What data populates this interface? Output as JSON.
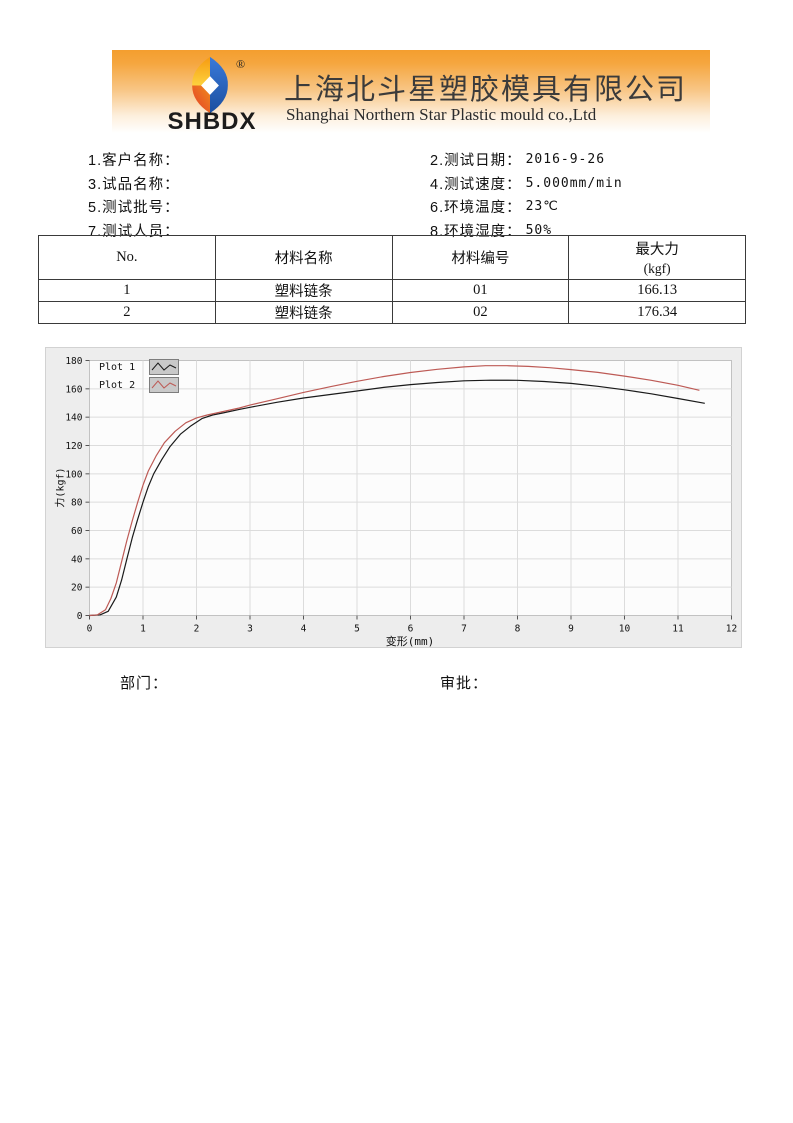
{
  "header": {
    "logo_text": "SHBDX",
    "registered_mark": "®",
    "company_name_cn": "上海北斗星塑胶模具有限公司",
    "company_name_en": "Shanghai Northern Star Plastic mould co.,Ltd",
    "banner_orange": "#f5a53c",
    "logo_colors": {
      "top": "#f6a118",
      "left_bottom": "#e8432a",
      "right": "#2f6fd0",
      "yellow": "#fdd23e"
    }
  },
  "info_fields": {
    "left": [
      {
        "label": "1.客户名称：",
        "value": ""
      },
      {
        "label": "3.试品名称：",
        "value": ""
      },
      {
        "label": "5.测试批号：",
        "value": ""
      },
      {
        "label": "7.测试人员：",
        "value": ""
      }
    ],
    "right": [
      {
        "label": "2.测试日期：",
        "value": "2016-9-26"
      },
      {
        "label": "4.测试速度：",
        "value": "5.000mm/min"
      },
      {
        "label": "6.环境温度：",
        "value": "23℃"
      },
      {
        "label": "8.环境湿度：",
        "value": "50%"
      }
    ]
  },
  "results_table": {
    "col_no": "No.",
    "col_material_name": "材料名称",
    "col_material_code": "材料编号",
    "col_max_force": "最大力",
    "col_max_force_unit": "(kgf)",
    "rows": [
      {
        "no": "1",
        "material_name": "塑料链条",
        "material_code": "01",
        "max_force": "166.13"
      },
      {
        "no": "2",
        "material_name": "塑料链条",
        "material_code": "02",
        "max_force": "176.34"
      }
    ]
  },
  "chart_data": {
    "type": "line",
    "title": "",
    "xlabel": "变形(mm)",
    "ylabel": "力(kgf)",
    "xlim": [
      0,
      12
    ],
    "ylim": [
      0,
      180
    ],
    "xticks": [
      0,
      1,
      2,
      3,
      4,
      5,
      6,
      7,
      8,
      9,
      10,
      11,
      12
    ],
    "yticks": [
      0,
      20,
      40,
      60,
      80,
      100,
      120,
      140,
      160,
      180
    ],
    "grid": true,
    "legend_position": "top-left",
    "series": [
      {
        "name": "Plot 1",
        "color": "#1a1a1a",
        "max_force_kgf": 166.13,
        "points": [
          [
            0,
            0
          ],
          [
            0.2,
            0.5
          ],
          [
            0.35,
            3
          ],
          [
            0.5,
            13
          ],
          [
            0.6,
            25
          ],
          [
            0.7,
            40
          ],
          [
            0.8,
            55
          ],
          [
            0.9,
            68
          ],
          [
            1.0,
            80
          ],
          [
            1.1,
            91
          ],
          [
            1.2,
            100
          ],
          [
            1.35,
            110
          ],
          [
            1.5,
            119
          ],
          [
            1.7,
            128
          ],
          [
            1.9,
            134
          ],
          [
            2.1,
            139
          ],
          [
            2.3,
            141.5
          ],
          [
            2.5,
            143
          ],
          [
            2.8,
            145.5
          ],
          [
            3.0,
            147
          ],
          [
            3.5,
            150.5
          ],
          [
            4.0,
            153.5
          ],
          [
            4.5,
            156
          ],
          [
            5.0,
            158.5
          ],
          [
            5.5,
            161
          ],
          [
            6.0,
            163
          ],
          [
            6.5,
            164.5
          ],
          [
            7.0,
            165.7
          ],
          [
            7.5,
            166.1
          ],
          [
            8.0,
            166
          ],
          [
            8.5,
            165.2
          ],
          [
            9.0,
            163.8
          ],
          [
            9.5,
            161.8
          ],
          [
            10.0,
            159.3
          ],
          [
            10.5,
            156.5
          ],
          [
            11.0,
            153.2
          ],
          [
            11.5,
            149.8
          ]
        ]
      },
      {
        "name": "Plot 2",
        "color": "#bd5a55",
        "max_force_kgf": 176.34,
        "points": [
          [
            0,
            0
          ],
          [
            0.15,
            0.5
          ],
          [
            0.3,
            4
          ],
          [
            0.4,
            12
          ],
          [
            0.5,
            23
          ],
          [
            0.6,
            38
          ],
          [
            0.7,
            53
          ],
          [
            0.8,
            67
          ],
          [
            0.9,
            80
          ],
          [
            1.0,
            92
          ],
          [
            1.1,
            102
          ],
          [
            1.25,
            113
          ],
          [
            1.4,
            122
          ],
          [
            1.6,
            130
          ],
          [
            1.8,
            136
          ],
          [
            2.0,
            139.5
          ],
          [
            2.2,
            141.5
          ],
          [
            2.5,
            144
          ],
          [
            2.8,
            146.5
          ],
          [
            3.0,
            148.5
          ],
          [
            3.5,
            153
          ],
          [
            4.0,
            157.5
          ],
          [
            4.5,
            161.5
          ],
          [
            5.0,
            165.3
          ],
          [
            5.5,
            168.7
          ],
          [
            6.0,
            171.5
          ],
          [
            6.5,
            173.8
          ],
          [
            7.0,
            175.5
          ],
          [
            7.4,
            176.3
          ],
          [
            7.8,
            176.3
          ],
          [
            8.2,
            175.8
          ],
          [
            8.6,
            174.9
          ],
          [
            9.0,
            173.6
          ],
          [
            9.5,
            171.6
          ],
          [
            10.0,
            169
          ],
          [
            10.5,
            166
          ],
          [
            11.0,
            162.5
          ],
          [
            11.4,
            159
          ]
        ]
      }
    ]
  },
  "footer": {
    "department_label": "部门：",
    "approval_label": "审批："
  }
}
